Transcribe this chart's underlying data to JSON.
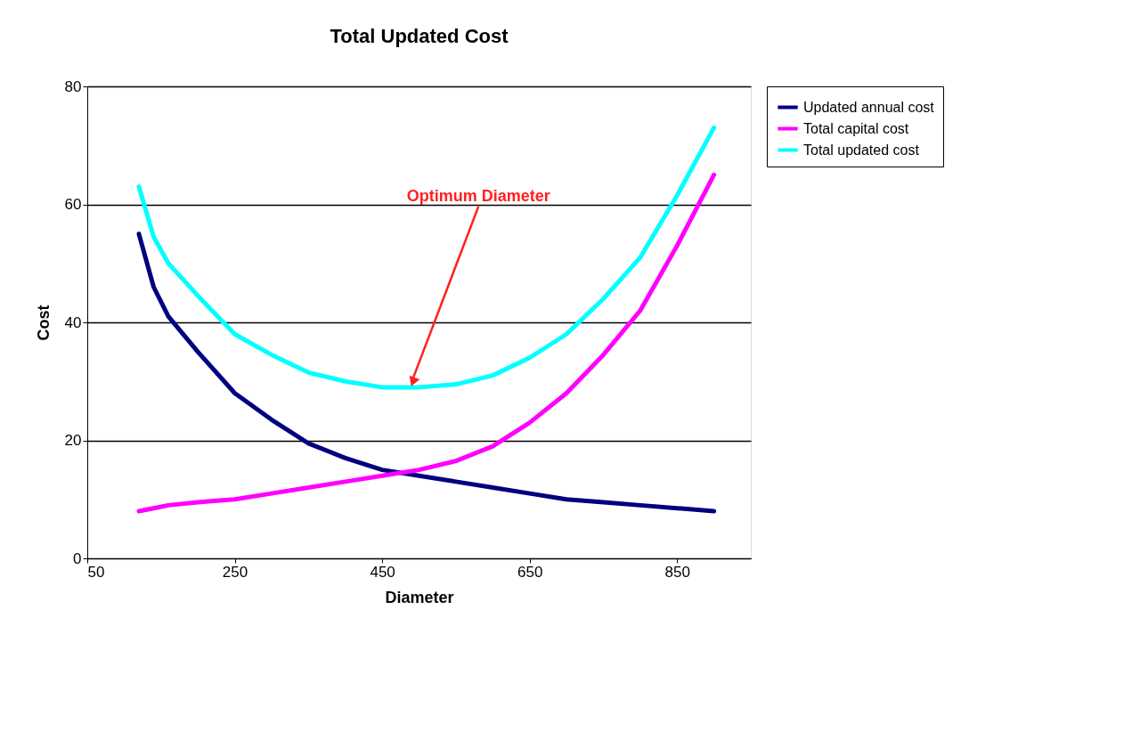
{
  "chart_data": {
    "type": "line",
    "title": "Total Updated Cost",
    "xlabel": "Diameter",
    "ylabel": "Cost",
    "x": [
      120,
      140,
      160,
      200,
      250,
      300,
      350,
      400,
      450,
      500,
      550,
      600,
      650,
      700,
      750,
      800,
      850,
      900
    ],
    "series": [
      {
        "name": "Updated annual cost",
        "color": "#000080",
        "values": [
          55,
          46,
          41,
          35,
          28,
          23.5,
          19.5,
          17,
          15,
          14,
          13,
          12,
          11,
          10,
          9.5,
          9,
          8.5,
          8
        ]
      },
      {
        "name": "Total capital cost",
        "color": "#ff00ff",
        "values": [
          8,
          8.5,
          9,
          9.5,
          10,
          11,
          12,
          13,
          14,
          15,
          16.5,
          19,
          23,
          28,
          34.5,
          42,
          53,
          65
        ]
      },
      {
        "name": "Total updated cost",
        "color": "#00ffff",
        "values": [
          63,
          54.5,
          50,
          44.5,
          38,
          34.5,
          31.5,
          30,
          29,
          29,
          29.5,
          31,
          34,
          38,
          44,
          51,
          61.5,
          73
        ]
      }
    ],
    "xlim": [
      50,
      950
    ],
    "xticks": [
      50,
      250,
      450,
      650,
      850
    ],
    "ylim": [
      0,
      80
    ],
    "yticks": [
      0,
      20,
      40,
      60,
      80
    ],
    "grid": "y",
    "legend": "right",
    "marker": "none",
    "line_style": "solid",
    "annotations": [
      {
        "text": "Optimum Diameter",
        "x": 490,
        "y": 29
      }
    ]
  }
}
